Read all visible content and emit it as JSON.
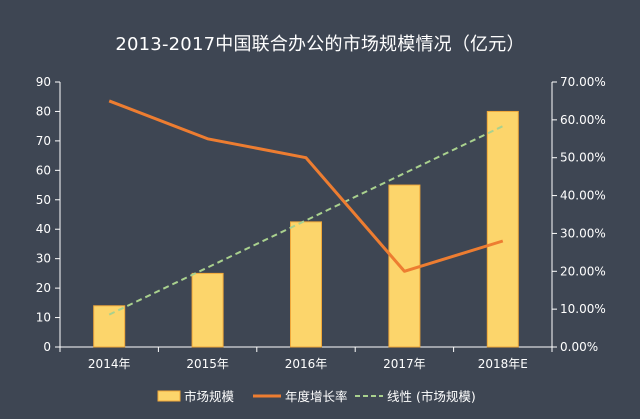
{
  "chart_data": {
    "type": "bar",
    "title": "2013-2017中国联合办公的市场规模情况（亿元）",
    "categories": [
      "2014年",
      "2015年",
      "2016年",
      "2017年",
      "2018年E"
    ],
    "series": [
      {
        "name": "市场规模",
        "type": "bar",
        "axis": "left",
        "values": [
          14,
          25,
          42.5,
          55,
          80
        ]
      },
      {
        "name": "年度增长率",
        "type": "line",
        "axis": "right",
        "values": [
          0.65,
          0.55,
          0.5,
          0.2,
          0.28
        ]
      },
      {
        "name": "线性 (市场规模)",
        "type": "trendline",
        "axis": "left",
        "values": [
          11.0,
          27.0,
          43.0,
          59.0,
          75.0
        ]
      }
    ],
    "y_left": {
      "min": 0,
      "max": 90,
      "ticks": [
        "0",
        "10",
        "20",
        "30",
        "40",
        "50",
        "60",
        "70",
        "80",
        "90"
      ]
    },
    "y_right": {
      "min": 0,
      "max": 0.7,
      "ticks": [
        "0.00%",
        "10.00%",
        "20.00%",
        "30.00%",
        "40.00%",
        "50.00%",
        "60.00%",
        "70.00%"
      ]
    },
    "grid": false,
    "legend_position": "bottom",
    "colors": {
      "background": "#3e4653",
      "bar": "#fcd56b",
      "bar_border": "#f0a83a",
      "line": "#ed7d31",
      "trend": "#a9d18e",
      "axis": "#ffffff"
    }
  }
}
